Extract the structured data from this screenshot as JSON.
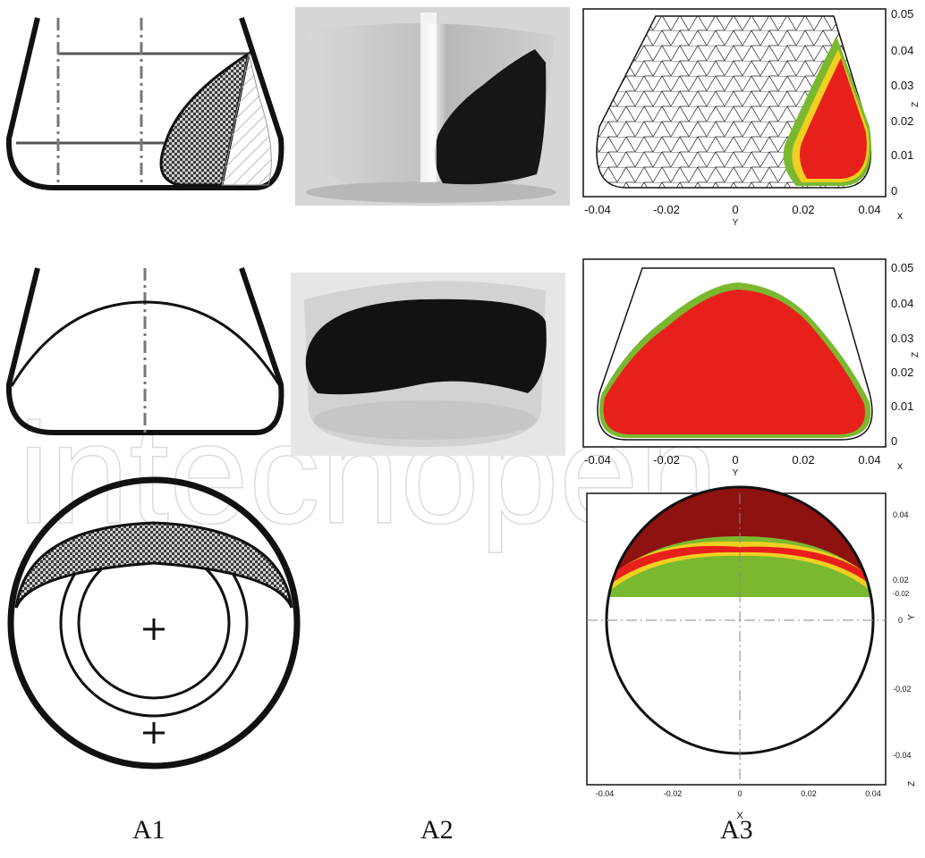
{
  "columns": {
    "a1": "A1",
    "a2": "A2",
    "a3": "A3"
  },
  "watermark": "intechopen",
  "plots": {
    "top": {
      "x_axis_label": "Y",
      "z_axis_label": "Z",
      "x_axis_marker": "x",
      "x_ticks": [
        "-0.04",
        "-0.02",
        "0",
        "0.02",
        "0.04"
      ],
      "z_ticks": [
        "0.05",
        "0.04",
        "0.03",
        "0.02",
        "0.01",
        "0"
      ]
    },
    "middle": {
      "x_axis_label": "Y",
      "z_axis_label": "Z",
      "x_axis_marker": "x",
      "x_ticks": [
        "-0.04",
        "-0.02",
        "0",
        "0.02",
        "0.04"
      ],
      "z_ticks": [
        "0.05",
        "0.04",
        "0.03",
        "0.02",
        "0.01",
        "0"
      ]
    },
    "bottom": {
      "x_axis_label": "X",
      "y_axis_label": "Y",
      "extra_label": "-0.02",
      "x_ticks": [
        "-0.04",
        "-0.02",
        "0",
        "0.02",
        "0.04"
      ],
      "y_ticks": [
        "0.04",
        "0.02",
        "0",
        "-0.02",
        "-0.04"
      ]
    }
  },
  "colors": {
    "fill_red": "#e8201c",
    "dark_red": "#8e1210",
    "rim_green": "#7ab830",
    "rim_yellow": "#f0d020"
  }
}
